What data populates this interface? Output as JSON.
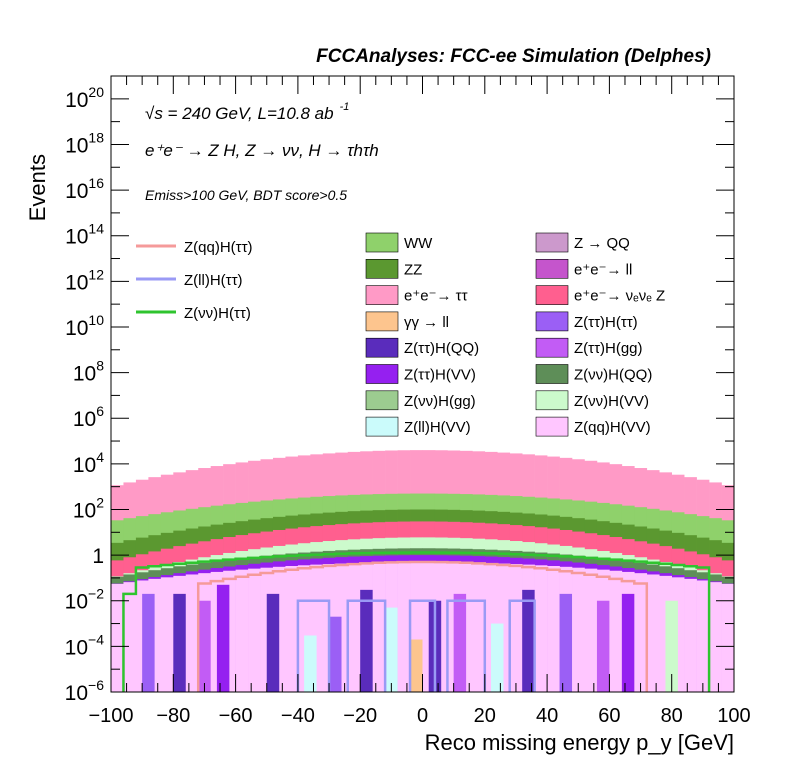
{
  "header": "FCCAnalyses: FCC-ee Simulation (Delphes)",
  "annotations": {
    "energy_lumi": "√s = 240 GeV, L=10.8 ab",
    "lumi_exp": "-1",
    "process": "e⁺e⁻ → Z H, Z → νν, H → τhτh",
    "selection": "Emiss>100 GeV, BDT score>0.5"
  },
  "chart_data": {
    "type": "bar",
    "stacked": true,
    "log_y": true,
    "xlabel": "Reco missing energy p_y [GeV]",
    "ylabel": "Events",
    "xlim": [
      -100,
      100
    ],
    "ylim": [
      1e-06,
      1e+21
    ],
    "x_ticks": [
      "−100",
      "−80",
      "−60",
      "−40",
      "−20",
      "0",
      "20",
      "40",
      "60",
      "80",
      "100"
    ],
    "y_ticks": [
      {
        "base": "10",
        "exp": "−6",
        "value": 1e-06
      },
      {
        "base": "10",
        "exp": "−4",
        "value": 0.0001
      },
      {
        "base": "10",
        "exp": "−2",
        "value": 0.01
      },
      {
        "base": "1",
        "exp": "",
        "value": 1
      },
      {
        "base": "10",
        "exp": "2",
        "value": 100.0
      },
      {
        "base": "10",
        "exp": "4",
        "value": 10000.0
      },
      {
        "base": "10",
        "exp": "6",
        "value": 1000000.0
      },
      {
        "base": "10",
        "exp": "8",
        "value": 100000000.0
      },
      {
        "base": "10",
        "exp": "10",
        "value": 10000000000.0
      },
      {
        "base": "10",
        "exp": "12",
        "value": 1000000000000.0
      },
      {
        "base": "10",
        "exp": "14",
        "value": 100000000000000.0
      },
      {
        "base": "10",
        "exp": "16",
        "value": 1e+16
      },
      {
        "base": "10",
        "exp": "18",
        "value": 1e+18
      },
      {
        "base": "10",
        "exp": "20",
        "value": 1e+20
      }
    ],
    "stack_layers": [
      {
        "name": "e⁺e⁻ → ττ",
        "color": "#ff9ac6",
        "peak": 40000,
        "edge": 1000
      },
      {
        "name": "WW",
        "color": "#8fd16b",
        "peak": 500,
        "edge": 30
      },
      {
        "name": "ZZ",
        "color": "#5b9830",
        "peak": 100,
        "edge": 3
      },
      {
        "name": "e⁺e⁻ → νₑνₑ Z",
        "color": "#ff5f8f",
        "peak": 30,
        "edge": 0.5
      },
      {
        "name": "Z(νν)H(VV)",
        "color": "#ccfacc",
        "peak": 6,
        "edge": 0.1
      },
      {
        "name": "Z(νν)H(QQ)",
        "color": "#5e8e58",
        "peak": 2,
        "edge": 0.1
      },
      {
        "name": "Z(ττ)H(VV)",
        "color": "#9520f0",
        "peak": 1,
        "edge": 0.05
      },
      {
        "name": "Z(qq)H(VV)",
        "color": "#ffc6ff",
        "peak": 0.5,
        "edge": 0.05
      }
    ],
    "legend_lines": [
      {
        "name": "Z(qq)H(ττ)",
        "color": "#f59a9a"
      },
      {
        "name": "Z(ll)H(ττ)",
        "color": "#9a9af5"
      },
      {
        "name": "Z(νν)H(ττ)",
        "color": "#2fc42f"
      }
    ],
    "legend_fills": [
      {
        "name": "WW",
        "color": "#8fd16b"
      },
      {
        "name": "Z → QQ",
        "color": "#cc99cc"
      },
      {
        "name": "ZZ",
        "color": "#5b9830"
      },
      {
        "name": "e⁺e⁻→ ll",
        "color": "#c555cc"
      },
      {
        "name": "e⁺e⁻→ ττ",
        "color": "#ff9ac6"
      },
      {
        "name": "e⁺e⁻→ νₑνₑ Z",
        "color": "#ff5f8f"
      },
      {
        "name": "γγ → ll",
        "color": "#fdc58e"
      },
      {
        "name": "Z(ττ)H(ττ)",
        "color": "#9b5ff5"
      },
      {
        "name": "Z(ττ)H(QQ)",
        "color": "#5a2cbc"
      },
      {
        "name": "Z(ττ)H(gg)",
        "color": "#c25cf5"
      },
      {
        "name": "Z(ττ)H(VV)",
        "color": "#9520f0"
      },
      {
        "name": "Z(νν)H(QQ)",
        "color": "#5e8e58"
      },
      {
        "name": "Z(νν)H(gg)",
        "color": "#9ccc90"
      },
      {
        "name": "Z(νν)H(VV)",
        "color": "#ccfacc"
      },
      {
        "name": "Z(ll)H(VV)",
        "color": "#cbfbfb"
      },
      {
        "name": "Z(qq)H(VV)",
        "color": "#ffc6ff"
      }
    ],
    "signal_lines": {
      "Z(νν)H(ττ)": {
        "color": "#2fc42f",
        "peak": 1.3,
        "edge": 0.02
      },
      "Z(qq)H(ττ)": {
        "color": "#f59a9a",
        "peak": 0.5,
        "edge": 0.01
      },
      "Z(ll)H(ττ)": {
        "color": "#9a9af5",
        "value": 0.01
      }
    }
  }
}
